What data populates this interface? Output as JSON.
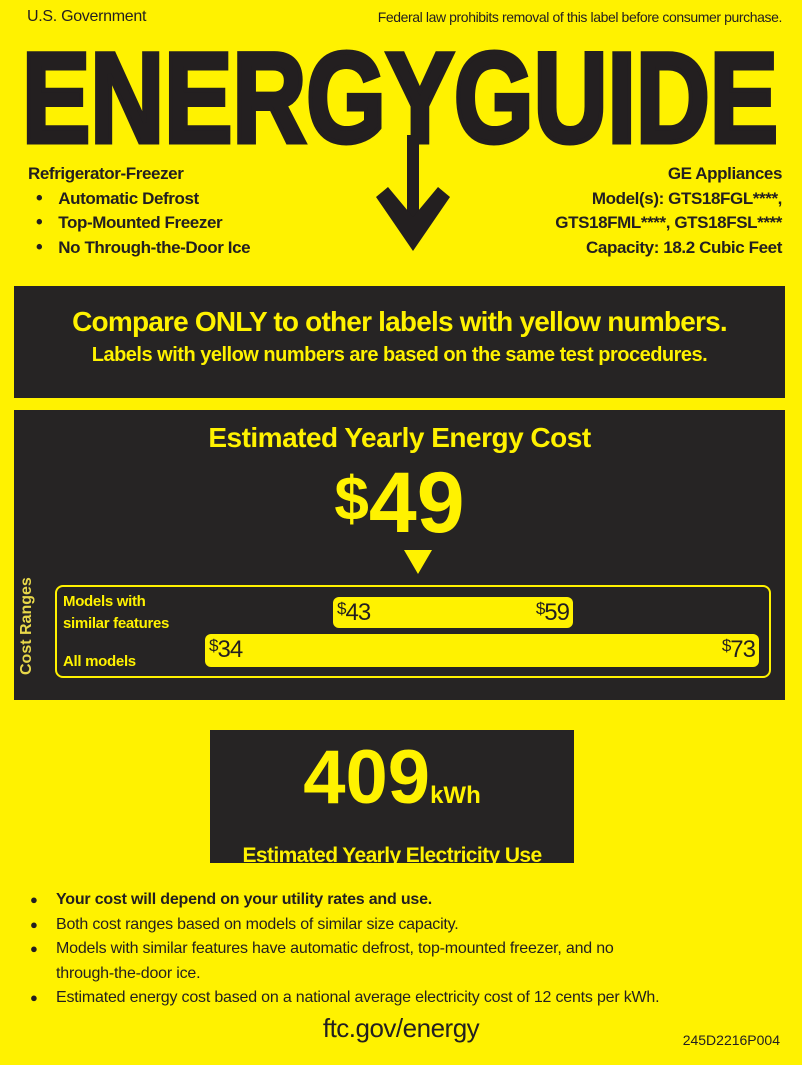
{
  "header": {
    "left": "U.S. Government",
    "right": "Federal law prohibits removal of this label before consumer purchase."
  },
  "logo": "ENERGYGUIDE",
  "appliance": {
    "type": "Refrigerator-Freezer",
    "features": [
      "Automatic Defrost",
      "Top-Mounted Freezer",
      "No Through-the-Door Ice"
    ]
  },
  "manufacturer": {
    "name": "GE Appliances",
    "models_line1": "Model(s): GTS18FGL****,",
    "models_line2": "GTS18FML****, GTS18FSL****",
    "capacity": "Capacity: 18.2 Cubic Feet"
  },
  "compare": {
    "line1": "Compare ONLY to other labels with yellow numbers.",
    "line2": "Labels with yellow numbers are based on the same test procedures."
  },
  "cost": {
    "title": "Estimated Yearly Energy Cost",
    "currency": "$",
    "value": "49",
    "ranges_label": "Cost Ranges",
    "similar": {
      "label1": "Models with",
      "label2": "similar features",
      "min": "43",
      "max": "59"
    },
    "all": {
      "label": "All models",
      "min": "34",
      "max": "73"
    }
  },
  "electricity": {
    "value": "409",
    "unit": "kWh",
    "caption": "Estimated Yearly Electricity Use"
  },
  "notes": [
    "Your cost will depend on your utility rates and use.",
    "Both cost ranges based on models of similar size capacity.",
    "Models with similar features have automatic defrost, top-mounted freezer, and no through-the-door ice.",
    "Estimated energy cost based on a national average electricity cost of 12 cents per kWh."
  ],
  "footer": {
    "link": "ftc.gov/energy",
    "code": "245D2216P004"
  },
  "colors": {
    "yellow": "#fff200",
    "dark": "#262424"
  }
}
